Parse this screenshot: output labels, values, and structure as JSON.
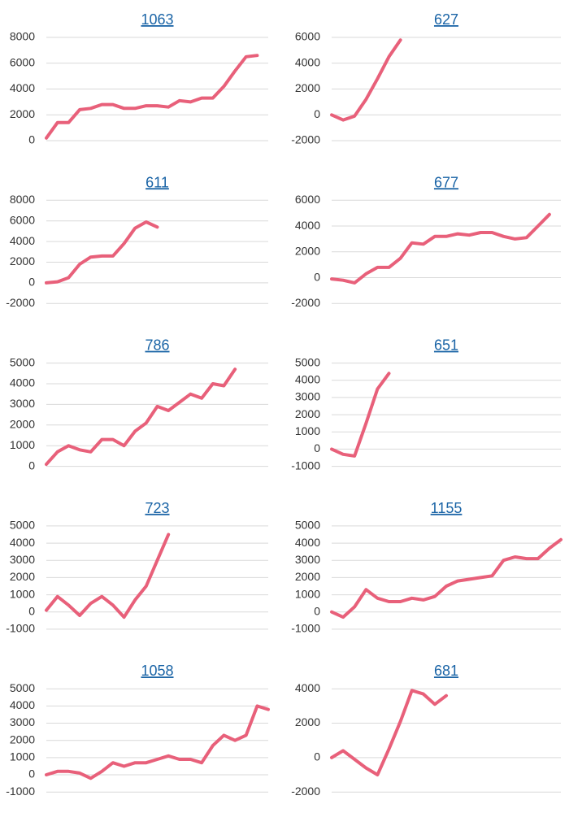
{
  "chart_data": [
    {
      "type": "line",
      "title": "1063",
      "color": "#e8607a",
      "grid": true,
      "ylim": [
        0,
        8000
      ],
      "yticks": [
        0,
        2000,
        4000,
        6000,
        8000
      ],
      "values": [
        200,
        1400,
        1400,
        2400,
        2500,
        2800,
        2800,
        2500,
        2500,
        2700,
        2700,
        2600,
        3100,
        3000,
        3300,
        3300,
        4200,
        5400,
        6500,
        6600,
        null
      ]
    },
    {
      "type": "line",
      "title": "627",
      "color": "#e8607a",
      "grid": true,
      "ylim": [
        -2000,
        6000
      ],
      "yticks": [
        -2000,
        0,
        2000,
        4000,
        6000
      ],
      "values": [
        0,
        -400,
        -100,
        1200,
        2800,
        4500,
        5800,
        null,
        null,
        null,
        null,
        null,
        null,
        null,
        null,
        null,
        null,
        null,
        null,
        null,
        null
      ]
    },
    {
      "type": "line",
      "title": "611",
      "color": "#e8607a",
      "grid": true,
      "ylim": [
        -2000,
        8000
      ],
      "yticks": [
        -2000,
        0,
        2000,
        4000,
        6000,
        8000
      ],
      "values": [
        0,
        100,
        500,
        1800,
        2500,
        2600,
        2600,
        3800,
        5300,
        5900,
        5400,
        null,
        null,
        null,
        null,
        null,
        null,
        null,
        null,
        null,
        null
      ]
    },
    {
      "type": "line",
      "title": "677",
      "color": "#e8607a",
      "grid": true,
      "ylim": [
        -2000,
        6000
      ],
      "yticks": [
        -2000,
        0,
        2000,
        4000,
        6000
      ],
      "values": [
        -100,
        -200,
        -400,
        300,
        800,
        800,
        1500,
        2700,
        2600,
        3200,
        3200,
        3400,
        3300,
        3500,
        3500,
        3200,
        3000,
        3100,
        4000,
        4900,
        null
      ]
    },
    {
      "type": "line",
      "title": "786",
      "color": "#e8607a",
      "grid": true,
      "ylim": [
        0,
        5000
      ],
      "yticks": [
        0,
        1000,
        2000,
        3000,
        4000,
        5000
      ],
      "values": [
        100,
        700,
        1000,
        800,
        700,
        1300,
        1300,
        1000,
        1700,
        2100,
        2900,
        2700,
        3100,
        3500,
        3300,
        4000,
        3900,
        4700,
        null,
        null,
        null
      ]
    },
    {
      "type": "line",
      "title": "651",
      "color": "#e8607a",
      "grid": true,
      "ylim": [
        -1000,
        5000
      ],
      "yticks": [
        -1000,
        0,
        1000,
        2000,
        3000,
        4000,
        5000
      ],
      "values": [
        0,
        -300,
        -400,
        1500,
        3500,
        4400,
        null,
        null,
        null,
        null,
        null,
        null,
        null,
        null,
        null,
        null,
        null,
        null,
        null,
        null,
        null
      ]
    },
    {
      "type": "line",
      "title": "723",
      "color": "#e8607a",
      "grid": true,
      "ylim": [
        -1000,
        5000
      ],
      "yticks": [
        -1000,
        0,
        1000,
        2000,
        3000,
        4000,
        5000
      ],
      "values": [
        100,
        900,
        400,
        -200,
        500,
        900,
        400,
        -300,
        700,
        1500,
        3000,
        4500,
        null,
        null,
        null,
        null,
        null,
        null,
        null,
        null,
        null
      ]
    },
    {
      "type": "line",
      "title": "1155",
      "color": "#e8607a",
      "grid": true,
      "ylim": [
        -1000,
        5000
      ],
      "yticks": [
        -1000,
        0,
        1000,
        2000,
        3000,
        4000,
        5000
      ],
      "values": [
        0,
        -300,
        300,
        1300,
        800,
        600,
        600,
        800,
        700,
        900,
        1500,
        1800,
        1900,
        2000,
        2100,
        3000,
        3200,
        3100,
        3100,
        3700,
        4200
      ]
    },
    {
      "type": "line",
      "title": "1058",
      "color": "#e8607a",
      "grid": true,
      "ylim": [
        -1000,
        5000
      ],
      "yticks": [
        -1000,
        0,
        1000,
        2000,
        3000,
        4000,
        5000
      ],
      "values": [
        0,
        200,
        200,
        100,
        -200,
        200,
        700,
        500,
        700,
        700,
        900,
        1100,
        900,
        900,
        700,
        1700,
        2300,
        2000,
        2300,
        4000,
        3800
      ]
    },
    {
      "type": "line",
      "title": "681",
      "color": "#e8607a",
      "grid": true,
      "ylim": [
        -2000,
        4000
      ],
      "yticks": [
        -2000,
        0,
        2000,
        4000
      ],
      "values": [
        0,
        400,
        -100,
        -600,
        -1000,
        500,
        2100,
        3900,
        3700,
        3100,
        3600,
        null,
        null,
        null,
        null,
        null,
        null,
        null,
        null,
        null,
        null
      ]
    }
  ]
}
